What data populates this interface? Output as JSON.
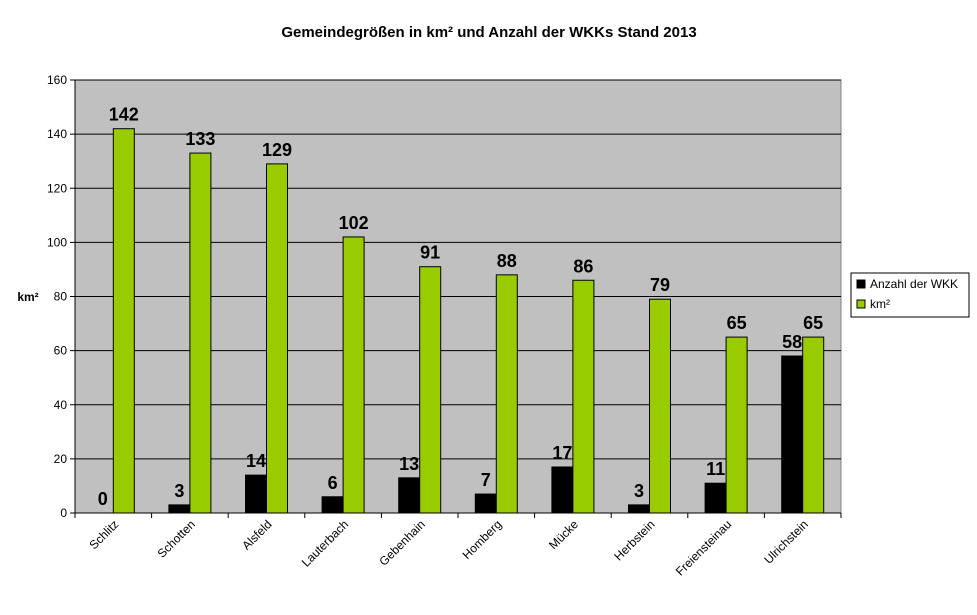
{
  "chart_data": {
    "type": "bar",
    "title": "Gemeindegrößen in km² und Anzahl der WKKs Stand 2013",
    "xlabel": "",
    "ylabel": "km²",
    "ylim": [
      0,
      160
    ],
    "yticks": [
      0,
      20,
      40,
      60,
      80,
      100,
      120,
      140,
      160
    ],
    "grid": true,
    "legend_position": "right",
    "categories": [
      "Schlitz",
      "Schotten",
      "Alsfeld",
      "Lauterbach",
      "Gebenhain",
      "Homberg",
      "Mücke",
      "Herbstein",
      "Freiensteinau",
      "Ulrichstein"
    ],
    "series": [
      {
        "name": "Anzahl der WKK",
        "color": "#000000",
        "values": [
          0,
          3,
          14,
          6,
          13,
          7,
          17,
          3,
          11,
          58
        ]
      },
      {
        "name": "km²",
        "color": "#99cc00",
        "values": [
          142,
          133,
          129,
          102,
          91,
          88,
          86,
          79,
          65,
          65
        ]
      }
    ],
    "plot_background": "#c0c0c0"
  }
}
